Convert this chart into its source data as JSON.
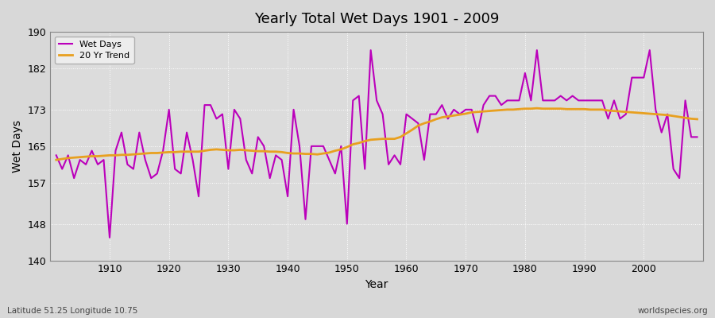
{
  "title": "Yearly Total Wet Days 1901 - 2009",
  "xlabel": "Year",
  "ylabel": "Wet Days",
  "subtitle_left": "Latitude 51.25 Longitude 10.75",
  "subtitle_right": "worldspecies.org",
  "ylim": [
    140,
    190
  ],
  "yticks": [
    140,
    148,
    157,
    165,
    173,
    182,
    190
  ],
  "xticks": [
    1910,
    1920,
    1930,
    1940,
    1950,
    1960,
    1970,
    1980,
    1990,
    2000
  ],
  "xlim": [
    1900,
    2010
  ],
  "bg_color": "#d8d8d8",
  "plot_bg_color": "#dcdcdc",
  "wet_days_color": "#bb00bb",
  "trend_color": "#e8a020",
  "linewidth_wet": 1.5,
  "linewidth_trend": 2.0,
  "years": [
    1901,
    1902,
    1903,
    1904,
    1905,
    1906,
    1907,
    1908,
    1909,
    1910,
    1911,
    1912,
    1913,
    1914,
    1915,
    1916,
    1917,
    1918,
    1919,
    1920,
    1921,
    1922,
    1923,
    1924,
    1925,
    1926,
    1927,
    1928,
    1929,
    1930,
    1931,
    1932,
    1933,
    1934,
    1935,
    1936,
    1937,
    1938,
    1939,
    1940,
    1941,
    1942,
    1943,
    1944,
    1945,
    1946,
    1947,
    1948,
    1949,
    1950,
    1951,
    1952,
    1953,
    1954,
    1955,
    1956,
    1957,
    1958,
    1959,
    1960,
    1961,
    1962,
    1963,
    1964,
    1965,
    1966,
    1967,
    1968,
    1969,
    1970,
    1971,
    1972,
    1973,
    1974,
    1975,
    1976,
    1977,
    1978,
    1979,
    1980,
    1981,
    1982,
    1983,
    1984,
    1985,
    1986,
    1987,
    1988,
    1989,
    1990,
    1991,
    1992,
    1993,
    1994,
    1995,
    1996,
    1997,
    1998,
    1999,
    2000,
    2001,
    2002,
    2003,
    2004,
    2005,
    2006,
    2007,
    2008,
    2009
  ],
  "wet_days": [
    163,
    160,
    163,
    158,
    162,
    161,
    164,
    161,
    162,
    145,
    164,
    168,
    161,
    160,
    168,
    162,
    158,
    159,
    164,
    173,
    160,
    159,
    168,
    162,
    154,
    174,
    174,
    171,
    172,
    160,
    173,
    171,
    162,
    159,
    167,
    165,
    158,
    163,
    162,
    154,
    173,
    165,
    149,
    165,
    165,
    165,
    162,
    159,
    165,
    148,
    175,
    176,
    160,
    186,
    175,
    172,
    161,
    163,
    161,
    172,
    171,
    170,
    162,
    172,
    172,
    174,
    171,
    173,
    172,
    173,
    173,
    168,
    174,
    176,
    176,
    174,
    175,
    175,
    175,
    181,
    175,
    186,
    175,
    175,
    175,
    176,
    175,
    176,
    175,
    175,
    175,
    175,
    175,
    171,
    175,
    171,
    172,
    180,
    180,
    180,
    186,
    173,
    168,
    172,
    160,
    158,
    175,
    167,
    167
  ],
  "trend_values": [
    162.0,
    162.2,
    162.4,
    162.5,
    162.6,
    162.7,
    162.8,
    162.8,
    162.9,
    163.0,
    163.0,
    163.1,
    163.1,
    163.2,
    163.3,
    163.4,
    163.5,
    163.5,
    163.6,
    163.7,
    163.7,
    163.8,
    163.8,
    163.8,
    163.8,
    164.0,
    164.2,
    164.3,
    164.2,
    164.1,
    164.1,
    164.2,
    164.1,
    164.0,
    163.9,
    163.9,
    163.8,
    163.8,
    163.7,
    163.5,
    163.4,
    163.4,
    163.3,
    163.3,
    163.2,
    163.4,
    163.6,
    164.0,
    164.3,
    164.8,
    165.4,
    165.7,
    166.1,
    166.4,
    166.5,
    166.6,
    166.6,
    166.6,
    167.0,
    167.8,
    168.6,
    169.5,
    170.0,
    170.4,
    170.9,
    171.3,
    171.5,
    171.7,
    171.9,
    172.1,
    172.4,
    172.5,
    172.6,
    172.7,
    172.8,
    172.9,
    173.0,
    173.0,
    173.1,
    173.2,
    173.2,
    173.3,
    173.2,
    173.2,
    173.2,
    173.2,
    173.1,
    173.1,
    173.1,
    173.1,
    173.0,
    173.0,
    173.0,
    172.8,
    172.7,
    172.6,
    172.5,
    172.4,
    172.3,
    172.2,
    172.1,
    172.0,
    171.9,
    171.8,
    171.6,
    171.4,
    171.2,
    171.0,
    170.9
  ]
}
